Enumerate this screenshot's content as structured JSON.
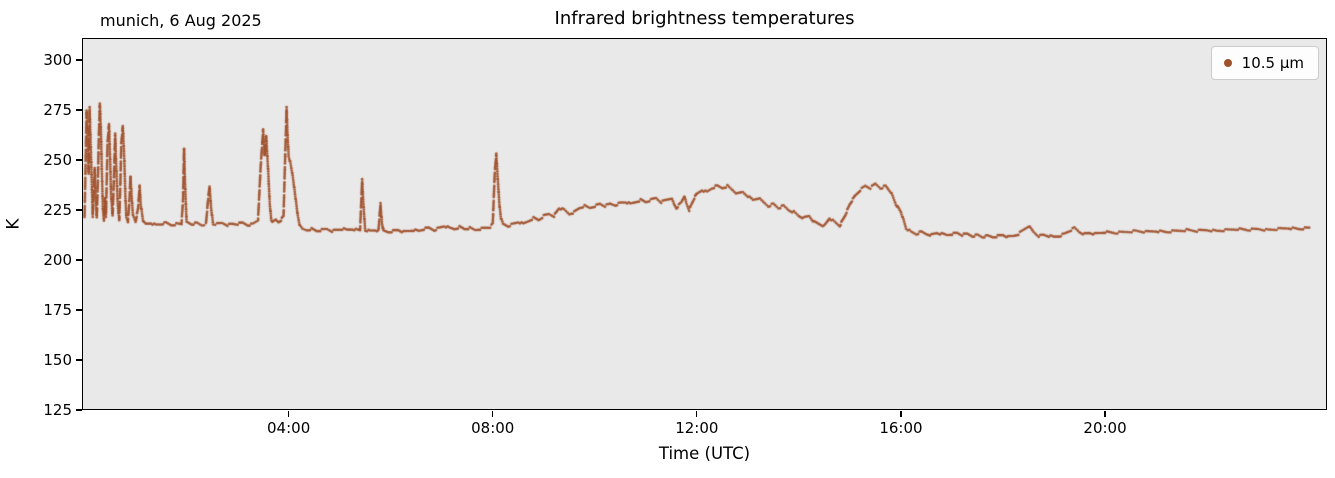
{
  "figure": {
    "title": "Infrared brightness temperatures",
    "annotation": "munich, 6 Aug 2025",
    "xlabel": "Time (UTC)",
    "ylabel": "K",
    "legend": {
      "label": "10.5 µm"
    }
  },
  "colors": {
    "series": "#a0522d",
    "plot_bg": "#e9e9e9",
    "figure_bg": "#ffffff",
    "spine": "#000000",
    "legend_border": "#cccccc"
  },
  "chart_data": {
    "type": "scatter",
    "title": "Infrared brightness temperatures",
    "annotation": "munich, 6 Aug 2025",
    "xlabel": "Time (UTC)",
    "ylabel": "K",
    "xlim": [
      -0.05,
      24.35
    ],
    "ylim": [
      125,
      311
    ],
    "x_ticks": [
      4,
      8,
      12,
      16,
      20
    ],
    "x_tick_labels": [
      "04:00",
      "08:00",
      "12:00",
      "16:00",
      "20:00"
    ],
    "y_ticks": [
      125,
      150,
      175,
      200,
      225,
      250,
      275,
      300
    ],
    "grid": false,
    "legend_position": "upper right",
    "series": [
      {
        "name": "10.5 µm",
        "color": "#a0522d",
        "marker": "dot",
        "x_unit": "hours_utc",
        "y_unit": "K",
        "points": [
          [
            0.0,
            221
          ],
          [
            0.02,
            248
          ],
          [
            0.04,
            275
          ],
          [
            0.06,
            262
          ],
          [
            0.08,
            243
          ],
          [
            0.1,
            276
          ],
          [
            0.12,
            258
          ],
          [
            0.14,
            240
          ],
          [
            0.16,
            222
          ],
          [
            0.18,
            233
          ],
          [
            0.2,
            246
          ],
          [
            0.22,
            230
          ],
          [
            0.24,
            221
          ],
          [
            0.26,
            238
          ],
          [
            0.28,
            262
          ],
          [
            0.3,
            278
          ],
          [
            0.32,
            266
          ],
          [
            0.34,
            244
          ],
          [
            0.36,
            225
          ],
          [
            0.38,
            220
          ],
          [
            0.4,
            231
          ],
          [
            0.42,
            222
          ],
          [
            0.45,
            258
          ],
          [
            0.48,
            268
          ],
          [
            0.5,
            252
          ],
          [
            0.52,
            232
          ],
          [
            0.55,
            222
          ],
          [
            0.58,
            244
          ],
          [
            0.6,
            263
          ],
          [
            0.62,
            248
          ],
          [
            0.65,
            228
          ],
          [
            0.68,
            220
          ],
          [
            0.7,
            236
          ],
          [
            0.72,
            258
          ],
          [
            0.75,
            267
          ],
          [
            0.78,
            250
          ],
          [
            0.8,
            232
          ],
          [
            0.82,
            221
          ],
          [
            0.85,
            219
          ],
          [
            0.88,
            230
          ],
          [
            0.9,
            242
          ],
          [
            0.92,
            233
          ],
          [
            0.95,
            222
          ],
          [
            1.0,
            219
          ],
          [
            1.05,
            226
          ],
          [
            1.08,
            237
          ],
          [
            1.1,
            228
          ],
          [
            1.15,
            219
          ],
          [
            1.2,
            218
          ],
          [
            1.3,
            218.5
          ],
          [
            1.4,
            217.5
          ],
          [
            1.5,
            218
          ],
          [
            1.6,
            218.5
          ],
          [
            1.7,
            217.5
          ],
          [
            1.8,
            218
          ],
          [
            1.9,
            218
          ],
          [
            1.93,
            230
          ],
          [
            1.95,
            256
          ],
          [
            1.97,
            238
          ],
          [
            2.0,
            219
          ],
          [
            2.1,
            218
          ],
          [
            2.2,
            218.5
          ],
          [
            2.3,
            217.5
          ],
          [
            2.38,
            218
          ],
          [
            2.42,
            230
          ],
          [
            2.45,
            237
          ],
          [
            2.48,
            226
          ],
          [
            2.52,
            218
          ],
          [
            2.6,
            218
          ],
          [
            2.7,
            218.5
          ],
          [
            2.8,
            217.5
          ],
          [
            2.9,
            218
          ],
          [
            3.0,
            218
          ],
          [
            3.1,
            218.5
          ],
          [
            3.2,
            217.5
          ],
          [
            3.3,
            218
          ],
          [
            3.4,
            220
          ],
          [
            3.45,
            246
          ],
          [
            3.5,
            265
          ],
          [
            3.53,
            252
          ],
          [
            3.56,
            262
          ],
          [
            3.6,
            244
          ],
          [
            3.63,
            228
          ],
          [
            3.66,
            220
          ],
          [
            3.7,
            219
          ],
          [
            3.75,
            220
          ],
          [
            3.8,
            219
          ],
          [
            3.85,
            220
          ],
          [
            3.9,
            222
          ],
          [
            3.93,
            250
          ],
          [
            3.96,
            276
          ],
          [
            3.98,
            262
          ],
          [
            4.0,
            252
          ],
          [
            4.03,
            249
          ],
          [
            4.06,
            245
          ],
          [
            4.09,
            240
          ],
          [
            4.12,
            234
          ],
          [
            4.15,
            228
          ],
          [
            4.18,
            222
          ],
          [
            4.22,
            217
          ],
          [
            4.27,
            215.5
          ],
          [
            4.35,
            215
          ],
          [
            4.45,
            215.5
          ],
          [
            4.55,
            214.5
          ],
          [
            4.65,
            215
          ],
          [
            4.75,
            215.5
          ],
          [
            4.85,
            214.5
          ],
          [
            4.95,
            215
          ],
          [
            5.05,
            215.5
          ],
          [
            5.15,
            215
          ],
          [
            5.25,
            215.5
          ],
          [
            5.35,
            215
          ],
          [
            5.4,
            215
          ],
          [
            5.44,
            240
          ],
          [
            5.47,
            226
          ],
          [
            5.5,
            215
          ],
          [
            5.6,
            214.5
          ],
          [
            5.7,
            215
          ],
          [
            5.76,
            214.5
          ],
          [
            5.8,
            228
          ],
          [
            5.83,
            218
          ],
          [
            5.86,
            214.5
          ],
          [
            5.95,
            214
          ],
          [
            6.05,
            214.5
          ],
          [
            6.15,
            215
          ],
          [
            6.25,
            214
          ],
          [
            6.35,
            214.5
          ],
          [
            6.45,
            215
          ],
          [
            6.55,
            214.5
          ],
          [
            6.65,
            215.5
          ],
          [
            6.75,
            216
          ],
          [
            6.85,
            215
          ],
          [
            6.95,
            216
          ],
          [
            7.05,
            217
          ],
          [
            7.15,
            216
          ],
          [
            7.25,
            215.5
          ],
          [
            7.35,
            216.5
          ],
          [
            7.45,
            215.5
          ],
          [
            7.55,
            216
          ],
          [
            7.65,
            215
          ],
          [
            7.75,
            215.5
          ],
          [
            7.85,
            216
          ],
          [
            7.95,
            216.5
          ],
          [
            8.0,
            218
          ],
          [
            8.04,
            244
          ],
          [
            8.07,
            253
          ],
          [
            8.1,
            240
          ],
          [
            8.13,
            228
          ],
          [
            8.16,
            221
          ],
          [
            8.2,
            218
          ],
          [
            8.3,
            217
          ],
          [
            8.4,
            218
          ],
          [
            8.5,
            219
          ],
          [
            8.6,
            218
          ],
          [
            8.7,
            219.5
          ],
          [
            8.8,
            221
          ],
          [
            8.9,
            220
          ],
          [
            9.0,
            222
          ],
          [
            9.1,
            223
          ],
          [
            9.2,
            222
          ],
          [
            9.3,
            226
          ],
          [
            9.4,
            225
          ],
          [
            9.5,
            223
          ],
          [
            9.6,
            224
          ],
          [
            9.7,
            226
          ],
          [
            9.8,
            227
          ],
          [
            9.9,
            226
          ],
          [
            10.0,
            227
          ],
          [
            10.1,
            228
          ],
          [
            10.2,
            227
          ],
          [
            10.3,
            228
          ],
          [
            10.4,
            227.5
          ],
          [
            10.5,
            228.5
          ],
          [
            10.6,
            229
          ],
          [
            10.7,
            228
          ],
          [
            10.8,
            229
          ],
          [
            10.9,
            230
          ],
          [
            11.0,
            229
          ],
          [
            11.1,
            230
          ],
          [
            11.2,
            231
          ],
          [
            11.3,
            229
          ],
          [
            11.4,
            230
          ],
          [
            11.5,
            231
          ],
          [
            11.55,
            228
          ],
          [
            11.6,
            226
          ],
          [
            11.7,
            229
          ],
          [
            11.75,
            232
          ],
          [
            11.8,
            228
          ],
          [
            11.85,
            225
          ],
          [
            11.9,
            228
          ],
          [
            11.95,
            231
          ],
          [
            12.0,
            233
          ],
          [
            12.1,
            235
          ],
          [
            12.2,
            234
          ],
          [
            12.3,
            236
          ],
          [
            12.4,
            237
          ],
          [
            12.5,
            236
          ],
          [
            12.6,
            237
          ],
          [
            12.7,
            235
          ],
          [
            12.8,
            233
          ],
          [
            12.9,
            234
          ],
          [
            13.0,
            232
          ],
          [
            13.1,
            230
          ],
          [
            13.2,
            231
          ],
          [
            13.3,
            229
          ],
          [
            13.4,
            227
          ],
          [
            13.5,
            228
          ],
          [
            13.6,
            226
          ],
          [
            13.7,
            227
          ],
          [
            13.8,
            225
          ],
          [
            13.9,
            224
          ],
          [
            14.0,
            222
          ],
          [
            14.1,
            221
          ],
          [
            14.2,
            222
          ],
          [
            14.3,
            219
          ],
          [
            14.4,
            218
          ],
          [
            14.5,
            217
          ],
          [
            14.6,
            221
          ],
          [
            14.7,
            219
          ],
          [
            14.8,
            217
          ],
          [
            14.9,
            222
          ],
          [
            15.0,
            228
          ],
          [
            15.1,
            232
          ],
          [
            15.2,
            235
          ],
          [
            15.3,
            237
          ],
          [
            15.4,
            236
          ],
          [
            15.5,
            238
          ],
          [
            15.6,
            236
          ],
          [
            15.7,
            237
          ],
          [
            15.8,
            234
          ],
          [
            15.9,
            228
          ],
          [
            16.0,
            224
          ],
          [
            16.05,
            220
          ],
          [
            16.1,
            216
          ],
          [
            16.2,
            214
          ],
          [
            16.3,
            213
          ],
          [
            16.4,
            214
          ],
          [
            16.5,
            213
          ],
          [
            16.6,
            212.5
          ],
          [
            16.7,
            213.5
          ],
          [
            16.8,
            213
          ],
          [
            16.9,
            212.5
          ],
          [
            17.0,
            213
          ],
          [
            17.1,
            213.5
          ],
          [
            17.2,
            212.5
          ],
          [
            17.3,
            213
          ],
          [
            17.4,
            212
          ],
          [
            17.5,
            212.5
          ],
          [
            17.6,
            211.5
          ],
          [
            17.7,
            212
          ],
          [
            17.8,
            211.5
          ],
          [
            17.9,
            212
          ],
          [
            18.0,
            212.5
          ],
          [
            18.1,
            211.5
          ],
          [
            18.2,
            212
          ],
          [
            18.3,
            213
          ],
          [
            18.4,
            215
          ],
          [
            18.5,
            217
          ],
          [
            18.6,
            214
          ],
          [
            18.7,
            212
          ],
          [
            18.8,
            212.5
          ],
          [
            18.9,
            212
          ],
          [
            19.0,
            211.5
          ],
          [
            19.1,
            212
          ],
          [
            19.2,
            213
          ],
          [
            19.3,
            214.5
          ],
          [
            19.4,
            216
          ],
          [
            19.5,
            214
          ],
          [
            19.6,
            213
          ],
          [
            19.7,
            213.5
          ],
          [
            19.8,
            213
          ],
          [
            19.9,
            213.5
          ],
          [
            20.0,
            214
          ],
          [
            20.2,
            213.5
          ],
          [
            20.4,
            214
          ],
          [
            20.6,
            214.5
          ],
          [
            20.8,
            214
          ],
          [
            21.0,
            214.5
          ],
          [
            21.2,
            214
          ],
          [
            21.4,
            214.5
          ],
          [
            21.6,
            215
          ],
          [
            21.8,
            214.5
          ],
          [
            22.0,
            215
          ],
          [
            22.2,
            214.5
          ],
          [
            22.4,
            215
          ],
          [
            22.6,
            215.5
          ],
          [
            22.8,
            215
          ],
          [
            23.0,
            215.5
          ],
          [
            23.2,
            215
          ],
          [
            23.4,
            215.5
          ],
          [
            23.6,
            216
          ],
          [
            23.8,
            215.5
          ],
          [
            24.0,
            216
          ]
        ]
      }
    ]
  }
}
